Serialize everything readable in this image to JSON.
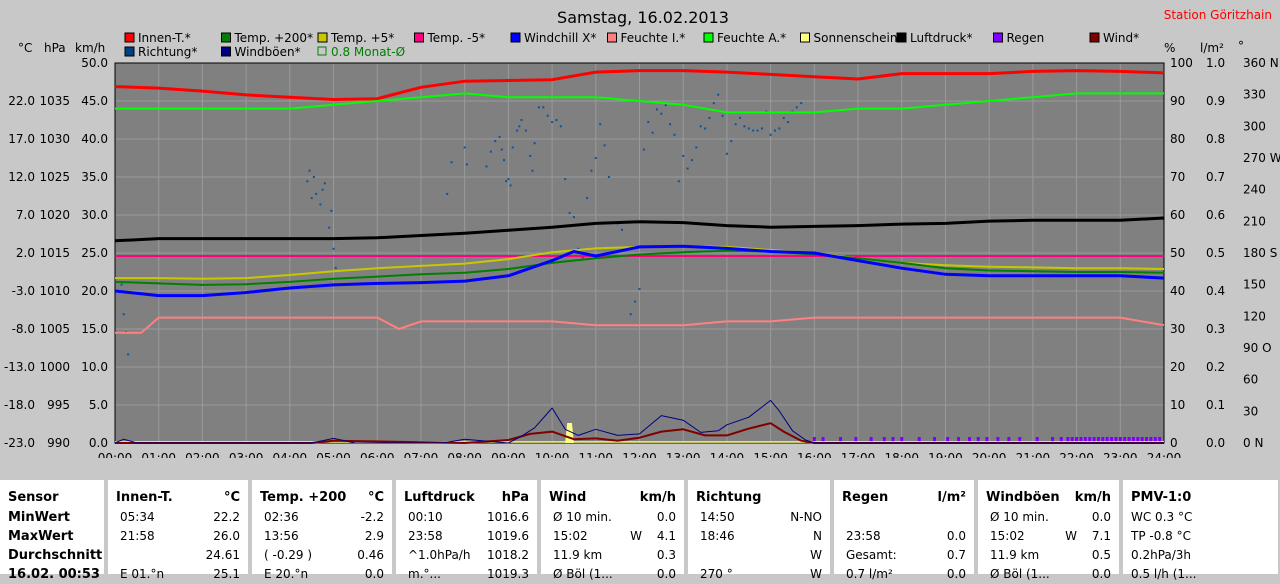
{
  "header": {
    "title": "Samstag, 16.02.2013",
    "station": "Station Göritzhain"
  },
  "axis_units": {
    "c": "°C",
    "hpa": "hPa",
    "kmh": "km/h",
    "pct": "%",
    "lm2": "l/m²",
    "deg": "°"
  },
  "legend": [
    {
      "label": "Innen-T.*",
      "color": "#ff0000"
    },
    {
      "label": "Temp. +200*",
      "color": "#008000"
    },
    {
      "label": "Temp. +5*",
      "color": "#c8c800"
    },
    {
      "label": "Temp. -5*",
      "color": "#ff0080"
    },
    {
      "label": "Windchill X*",
      "color": "#0000ff"
    },
    {
      "label": "Feuchte I.*",
      "color": "#ff8080"
    },
    {
      "label": "Feuchte A.*",
      "color": "#00ff00"
    },
    {
      "label": "Sonnenschein*",
      "color": "#ffff80"
    },
    {
      "label": "Luftdruck*",
      "color": "#000000"
    },
    {
      "label": "Regen",
      "color": "#8000ff"
    },
    {
      "label": "Wind*",
      "color": "#800000"
    },
    {
      "label": "Richtung*",
      "color": "#004080"
    },
    {
      "label": "Windböen*",
      "color": "#000080"
    },
    {
      "label": "0.8 Monat-Ø",
      "color": "#008000"
    }
  ],
  "chart_data": {
    "type": "line",
    "x_ticks": [
      "00:00",
      "01:00",
      "02:00",
      "03:00",
      "04:00",
      "05:00",
      "06:00",
      "07:00",
      "08:00",
      "09:00",
      "10:00",
      "11:00",
      "12:00",
      "13:00",
      "14:00",
      "15:00",
      "16:00",
      "17:00",
      "18:00",
      "19:00",
      "20:00",
      "21:00",
      "22:00",
      "23:00",
      "24:00"
    ],
    "axis_temp_ticks": [
      "-23.0",
      "-18.0",
      "-13.0",
      "-8.0",
      "-3.0",
      "2.0",
      "7.0",
      "12.0",
      "17.0",
      "22.0"
    ],
    "axis_hpa_ticks": [
      "990",
      "995",
      "1000",
      "1005",
      "1010",
      "1015",
      "1020",
      "1025",
      "1030",
      "1035"
    ],
    "axis_kmh_ticks": [
      "0.0",
      "5.0",
      "10.0",
      "15.0",
      "20.0",
      "25.0",
      "30.0",
      "35.0",
      "40.0",
      "45.0",
      "50.0"
    ],
    "axis_pct_ticks": [
      "0",
      "10",
      "20",
      "30",
      "40",
      "50",
      "60",
      "70",
      "80",
      "90",
      "100"
    ],
    "axis_rain_ticks": [
      "0.0",
      "0.1",
      "0.2",
      "0.3",
      "0.4",
      "0.5",
      "0.6",
      "0.7",
      "0.8",
      "0.9",
      "1.0"
    ],
    "axis_dir_ticks": [
      "0  N",
      "30",
      "60",
      "90  O",
      "120",
      "150",
      "180 S",
      "210",
      "240",
      "270 W",
      "300",
      "330",
      "360 N"
    ],
    "temp_range": [
      -23,
      27
    ],
    "series": [
      {
        "name": "Innen-T.*",
        "axis": "temp",
        "color": "#ff0000",
        "width": 3,
        "x": [
          0,
          1,
          2,
          3,
          4,
          5,
          6,
          7,
          8,
          9,
          10,
          11,
          12,
          13,
          14,
          15,
          16,
          17,
          18,
          19,
          20,
          21,
          22,
          23,
          24
        ],
        "y": [
          23.9,
          23.7,
          23.3,
          22.8,
          22.5,
          22.2,
          22.3,
          23.8,
          24.6,
          24.7,
          24.8,
          25.8,
          26.0,
          26.0,
          25.8,
          25.5,
          25.2,
          24.9,
          25.6,
          25.6,
          25.6,
          25.9,
          26.0,
          25.9,
          25.7
        ]
      },
      {
        "name": "Feuchte A.*",
        "axis": "pct",
        "color": "#00ff00",
        "width": 2,
        "x": [
          0,
          1,
          2,
          3,
          4,
          5,
          6,
          7,
          8,
          9,
          10,
          11,
          12,
          13,
          14,
          15,
          16,
          17,
          18,
          19,
          20,
          21,
          22,
          23,
          24
        ],
        "y": [
          88,
          88,
          88,
          88,
          88,
          89,
          90,
          91,
          92,
          91,
          91,
          91,
          90,
          89,
          87,
          87,
          87,
          88,
          88,
          89,
          90,
          91,
          92,
          92,
          92
        ]
      },
      {
        "name": "Luftdruck*",
        "axis": "hpa",
        "color": "#000000",
        "width": 3,
        "x": [
          0,
          1,
          2,
          3,
          4,
          5,
          6,
          7,
          8,
          9,
          10,
          11,
          12,
          13,
          14,
          15,
          16,
          17,
          18,
          19,
          20,
          21,
          22,
          23,
          24
        ],
        "y": [
          1016.6,
          1016.9,
          1016.9,
          1016.9,
          1016.9,
          1016.9,
          1017.0,
          1017.3,
          1017.6,
          1018.0,
          1018.4,
          1018.9,
          1019.1,
          1019.0,
          1018.6,
          1018.4,
          1018.5,
          1018.6,
          1018.8,
          1018.9,
          1019.2,
          1019.3,
          1019.3,
          1019.3,
          1019.6
        ]
      },
      {
        "name": "Temp. -5*",
        "axis": "temp",
        "color": "#ff0080",
        "width": 2,
        "x": [
          0,
          24
        ],
        "y": [
          1.6,
          1.6
        ]
      },
      {
        "name": "Temp. +5*",
        "axis": "temp",
        "color": "#c8c800",
        "width": 2,
        "x": [
          0,
          1,
          2,
          3,
          4,
          5,
          6,
          7,
          8,
          9,
          10,
          11,
          12,
          13,
          14,
          15,
          16,
          17,
          18,
          19,
          20,
          21,
          22,
          23,
          24
        ],
        "y": [
          -1.3,
          -1.3,
          -1.4,
          -1.3,
          -0.9,
          -0.4,
          0.0,
          0.3,
          0.6,
          1.2,
          2.1,
          2.6,
          2.8,
          2.9,
          2.8,
          2.4,
          2.0,
          1.3,
          0.7,
          0.4,
          0.2,
          0.1,
          0.0,
          0.0,
          -0.1
        ]
      },
      {
        "name": "Temp. +200*",
        "axis": "temp",
        "color": "#008000",
        "width": 2,
        "x": [
          0,
          1,
          2,
          3,
          4,
          5,
          6,
          7,
          8,
          9,
          10,
          11,
          12,
          13,
          14,
          15,
          16,
          17,
          18,
          19,
          20,
          21,
          22,
          23,
          24
        ],
        "y": [
          -1.8,
          -2.0,
          -2.2,
          -2.1,
          -1.8,
          -1.4,
          -1.1,
          -0.8,
          -0.6,
          -0.1,
          0.7,
          1.3,
          1.8,
          2.1,
          2.3,
          2.2,
          1.8,
          1.3,
          0.7,
          0.0,
          -0.3,
          -0.4,
          -0.5,
          -0.5,
          -0.6
        ]
      },
      {
        "name": "Windchill X*",
        "axis": "temp",
        "color": "#0000ff",
        "width": 3,
        "x": [
          0,
          1,
          2,
          3,
          4,
          5,
          6,
          7,
          8,
          9,
          10,
          10.5,
          11,
          12,
          13,
          14,
          15,
          16,
          17,
          18,
          19,
          20,
          21,
          22,
          23,
          24
        ],
        "y": [
          -3.0,
          -3.6,
          -3.6,
          -3.2,
          -2.6,
          -2.2,
          -2.0,
          -1.9,
          -1.7,
          -1.0,
          1.0,
          2.2,
          1.6,
          2.8,
          2.9,
          2.6,
          2.2,
          2.0,
          1.0,
          0.0,
          -0.8,
          -1.0,
          -1.0,
          -1.0,
          -1.0,
          -1.3
        ]
      },
      {
        "name": "Feuchte I.*",
        "axis": "pct",
        "color": "#ff8080",
        "width": 2,
        "x": [
          0,
          0.6,
          1,
          2,
          3,
          4,
          5,
          6,
          6.5,
          7,
          8,
          9,
          10,
          11,
          12,
          13,
          14,
          15,
          16,
          17,
          18,
          19,
          20,
          21,
          22,
          23,
          24
        ],
        "y": [
          29,
          29,
          33,
          33,
          33,
          33,
          33,
          33,
          30,
          32,
          32,
          32,
          32,
          31,
          31,
          31,
          32,
          32,
          33,
          33,
          33,
          33,
          33,
          33,
          33,
          33,
          31
        ]
      },
      {
        "name": "Wind*",
        "axis": "kmh",
        "color": "#800000",
        "width": 2,
        "x": [
          0,
          4.5,
          5,
          8,
          9,
          9.5,
          10,
          10.5,
          11,
          11.5,
          12,
          12.5,
          13,
          13.5,
          14,
          14.5,
          15,
          15.3,
          15.7,
          16,
          24
        ],
        "y": [
          0,
          0,
          0.3,
          0,
          0.4,
          1.2,
          1.5,
          0.5,
          0.6,
          0.3,
          0.7,
          1.5,
          1.8,
          1.0,
          1.0,
          1.9,
          2.6,
          1.5,
          0.3,
          0,
          0
        ]
      },
      {
        "name": "Windböen*",
        "axis": "kmh",
        "color": "#000080",
        "width": 1,
        "x": [
          0,
          0.2,
          0.5,
          4.5,
          5,
          5.5,
          7.5,
          8,
          9,
          9.3,
          9.6,
          10,
          10.3,
          10.6,
          11,
          11.5,
          12,
          12.5,
          13,
          13.4,
          13.8,
          14,
          14.5,
          15,
          15.2,
          15.5,
          15.8,
          16,
          24
        ],
        "y": [
          0,
          0.5,
          0,
          0,
          0.6,
          0,
          0,
          0.5,
          0,
          0.9,
          2.0,
          4.6,
          1.8,
          1.0,
          1.8,
          1.0,
          1.2,
          3.6,
          3.0,
          1.4,
          1.6,
          2.4,
          3.4,
          5.6,
          4.2,
          1.6,
          0.4,
          0,
          0
        ]
      }
    ],
    "sunshine": {
      "x": [
        10.3,
        10.5
      ],
      "y": [
        2.4,
        2.4
      ]
    },
    "direction_scatter": {
      "axis": "deg",
      "x": [
        0.15,
        0.2,
        0.25,
        0.3,
        4.4,
        4.45,
        4.5,
        4.55,
        4.6,
        4.7,
        4.75,
        4.8,
        4.9,
        4.95,
        5.0,
        5.05,
        7.6,
        7.7,
        8.0,
        8.05,
        8.5,
        8.6,
        8.7,
        8.8,
        8.85,
        8.9,
        8.95,
        9.0,
        9.05,
        9.1,
        9.2,
        9.25,
        9.3,
        9.4,
        9.5,
        9.55,
        9.6,
        9.7,
        9.8,
        9.9,
        10.0,
        10.1,
        10.2,
        10.3,
        10.4,
        10.5,
        10.6,
        10.7,
        10.8,
        10.9,
        11.0,
        11.1,
        11.2,
        11.3,
        11.5,
        11.6,
        11.8,
        11.9,
        12.0,
        12.1,
        12.2,
        12.3,
        12.4,
        12.5,
        12.6,
        12.7,
        12.8,
        12.9,
        13.0,
        13.1,
        13.2,
        13.3,
        13.4,
        13.5,
        13.6,
        13.7,
        13.8,
        13.9,
        14.0,
        14.1,
        14.2,
        14.3,
        14.4,
        14.5,
        14.6,
        14.7,
        14.8,
        14.9,
        15.0,
        15.1,
        15.2,
        15.3,
        15.4,
        15.5,
        15.6,
        15.7
      ],
      "y": [
        150,
        122,
        105,
        84,
        248,
        258,
        232,
        252,
        236,
        226,
        240,
        246,
        204,
        220,
        184,
        166,
        236,
        266,
        280,
        264,
        262,
        276,
        286,
        290,
        278,
        268,
        248,
        250,
        244,
        280,
        296,
        300,
        306,
        296,
        272,
        258,
        284,
        318,
        318,
        310,
        304,
        306,
        300,
        250,
        218,
        214,
        184,
        176,
        232,
        258,
        270,
        302,
        282,
        252,
        208,
        202,
        122,
        134,
        146,
        278,
        304,
        294,
        316,
        312,
        320,
        302,
        292,
        248,
        272,
        260,
        268,
        280,
        300,
        298,
        308,
        322,
        330,
        310,
        274,
        286,
        302,
        308,
        300,
        298,
        296,
        296,
        298,
        314,
        292,
        296,
        298,
        308,
        304,
        314,
        318,
        322
      ]
    },
    "rain_markers": {
      "axis": "lm2",
      "x": [
        16.0,
        16.2,
        16.6,
        16.95,
        17.3,
        17.6,
        17.8,
        18.0,
        18.4,
        18.75,
        19.05,
        19.3,
        19.55,
        19.75,
        19.95,
        20.2,
        20.45,
        20.7,
        21.1,
        21.45,
        21.65,
        21.8,
        21.9,
        22.0,
        22.1,
        22.2,
        22.3,
        22.4,
        22.5,
        22.6,
        22.7,
        22.8,
        22.9,
        23.0,
        23.1,
        23.2,
        23.3,
        23.4,
        23.5,
        23.6,
        23.7,
        23.8,
        23.9
      ],
      "y": [
        0.01,
        0.01,
        0.02,
        0.01,
        0.02,
        0.01,
        0.02,
        0.01,
        0.02,
        0.01,
        0.02,
        0.01,
        0.02,
        0.01,
        0.02,
        0.01,
        0.02,
        0.01,
        0.02,
        0.01,
        0.02,
        0.02,
        0.02,
        0.02,
        0.02,
        0.02,
        0.02,
        0.02,
        0.02,
        0.02,
        0.02,
        0.02,
        0.02,
        0.02,
        0.02,
        0.02,
        0.02,
        0.02,
        0.02,
        0.02,
        0.02,
        0.02,
        0.02
      ]
    },
    "reference_line": {
      "axis": "kmh",
      "value": 24.6
    }
  },
  "table": [
    {
      "header": [
        "Sensor",
        ""
      ],
      "rows": [
        [
          "MinWert",
          "",
          ""
        ],
        [
          "MaxWert",
          "",
          ""
        ],
        [
          "Durchschnitt",
          "",
          ""
        ],
        [
          "16.02. 00:53",
          "",
          ""
        ]
      ]
    },
    {
      "header": [
        "Innen-T.",
        "°C"
      ],
      "rows": [
        [
          "05:34",
          "",
          "22.2"
        ],
        [
          "21:58",
          "",
          "26.0"
        ],
        [
          "",
          "",
          "24.61"
        ],
        [
          "E 01.°n",
          "",
          "25.1"
        ]
      ]
    },
    {
      "header": [
        "Temp. +200",
        "°C"
      ],
      "rows": [
        [
          "02:36",
          "",
          "-2.2"
        ],
        [
          "13:56",
          "",
          "2.9"
        ],
        [
          "( -0.29 )",
          "",
          "0.46"
        ],
        [
          "E 20.°n",
          "",
          "0.0"
        ]
      ]
    },
    {
      "header": [
        "Luftdruck",
        "hPa"
      ],
      "rows": [
        [
          "00:10",
          "",
          "1016.6"
        ],
        [
          "23:58",
          "",
          "1019.6"
        ],
        [
          "^1.0hPa/h",
          "",
          "1018.2"
        ],
        [
          "m.°...",
          "",
          "1019.3"
        ]
      ]
    },
    {
      "header": [
        "Wind",
        "km/h"
      ],
      "rows": [
        [
          "Ø 10 min.",
          "",
          "0.0"
        ],
        [
          "15:02",
          "W",
          "4.1"
        ],
        [
          "11.9 km",
          "",
          "0.3"
        ],
        [
          "Ø Böl (1...",
          "",
          "0.0"
        ]
      ]
    },
    {
      "header": [
        "Richtung",
        ""
      ],
      "rows": [
        [
          "14:50",
          "",
          "N-NO"
        ],
        [
          "18:46",
          "",
          "N"
        ],
        [
          "",
          "",
          "W"
        ],
        [
          "270 °",
          "",
          "W"
        ]
      ]
    },
    {
      "header": [
        "Regen",
        "l/m²"
      ],
      "rows": [
        [
          "",
          "",
          ""
        ],
        [
          "23:58",
          "",
          "0.0"
        ],
        [
          "Gesamt:",
          "",
          "0.7"
        ],
        [
          "0.7 l/m²",
          "",
          "0.0"
        ]
      ]
    },
    {
      "header": [
        "Windböen",
        "km/h"
      ],
      "rows": [
        [
          "Ø 10 min.",
          "",
          "0.0"
        ],
        [
          "15:02",
          "W",
          "7.1"
        ],
        [
          "11.9 km",
          "",
          "0.5"
        ],
        [
          "Ø Böl (1...",
          "",
          "0.0"
        ]
      ]
    },
    {
      "header": [
        "PMV-1:0",
        ""
      ],
      "rows": [
        [
          "WC 0.3 °C",
          "",
          ""
        ],
        [
          "TP -0.8 °C",
          "",
          ""
        ],
        [
          "0.2hPa/3h",
          "",
          ""
        ],
        [
          "0.5 l/h (1...",
          "",
          ""
        ]
      ]
    }
  ]
}
